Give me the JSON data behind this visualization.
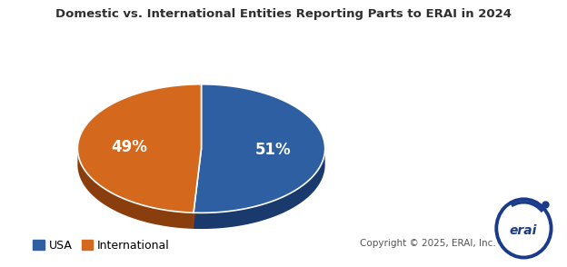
{
  "title": "Domestic vs. International Entities Reporting Parts to ERAI in 2024",
  "slices": [
    51,
    49
  ],
  "labels": [
    "USA",
    "International"
  ],
  "percentages": [
    "51%",
    "49%"
  ],
  "colors": [
    "#2E5FA3",
    "#D4691E"
  ],
  "shadow_colors": [
    "#1a3a6e",
    "#8B3E0D"
  ],
  "explode": [
    0.0,
    0.0
  ],
  "startangle": 90,
  "legend_labels": [
    "USA",
    "International"
  ],
  "legend_colors": [
    "#2E5FA3",
    "#D4691E"
  ],
  "copyright_text": "Copyright © 2025, ERAI, Inc.",
  "title_fontsize": 9.5,
  "label_fontsize": 12,
  "legend_fontsize": 9,
  "background_color": "#FFFFFF",
  "yscale": 0.52,
  "depth": 0.13
}
